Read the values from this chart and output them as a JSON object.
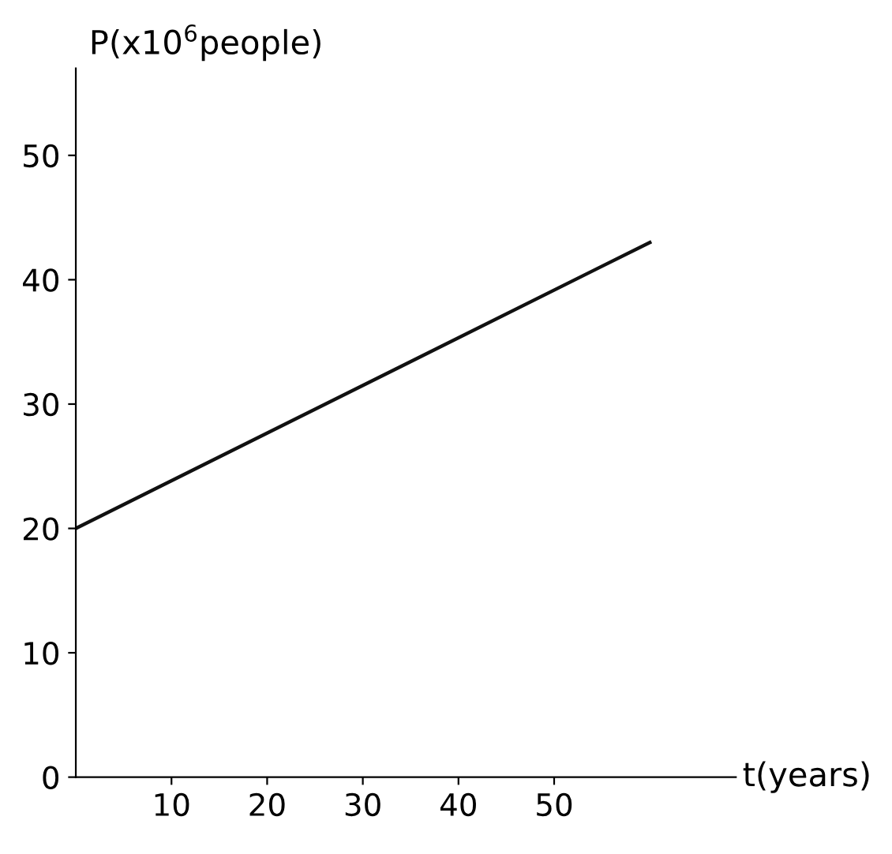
{
  "chart_data": {
    "type": "line",
    "x": [
      0,
      60
    ],
    "values": [
      20,
      43
    ],
    "color": "#111111",
    "xlim": [
      0,
      69
    ],
    "ylim": [
      0,
      57
    ],
    "xticks": [
      10,
      20,
      30,
      40,
      50
    ],
    "yticks": [
      0,
      10,
      20,
      30,
      40,
      50
    ],
    "xlabel": "t(years)",
    "ylabel": "P(x10$^{6}$people)",
    "grid": false,
    "marker": "none",
    "line_style": "solid"
  }
}
